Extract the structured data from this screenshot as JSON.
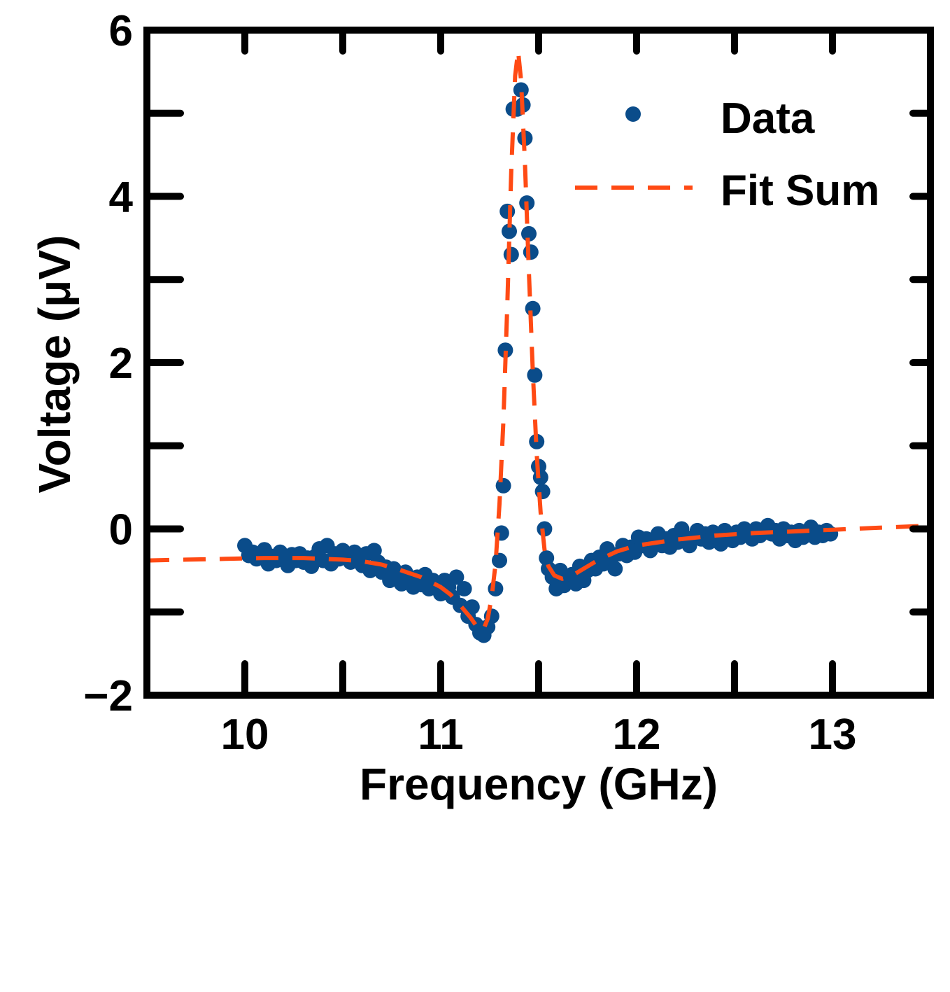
{
  "chart_data": {
    "type": "scatter",
    "xlabel": "Frequency (GHz)",
    "ylabel": "Voltage (μV)",
    "xlim": [
      9.5,
      13.5
    ],
    "ylim": [
      -2,
      6
    ],
    "xticks": [
      10,
      11,
      12,
      13
    ],
    "xtick_labels": [
      "10",
      "11",
      "12",
      "13"
    ],
    "xticks_minor": [
      10.5,
      11.5,
      12.5
    ],
    "yticks": [
      -2,
      0,
      2,
      4,
      6
    ],
    "ytick_labels": [
      "−2",
      "0",
      "2",
      "4",
      "6"
    ],
    "yticks_minor": [
      -1,
      1,
      3,
      5
    ],
    "grid": false,
    "legend_position": "top-right",
    "colors": {
      "data": "#0a4c8a",
      "fit": "#ff4a14",
      "axes": "#000000"
    },
    "series": [
      {
        "name": "Data",
        "type": "scatter",
        "points": [
          [
            10.0,
            -0.2
          ],
          [
            10.02,
            -0.32
          ],
          [
            10.04,
            -0.28
          ],
          [
            10.06,
            -0.36
          ],
          [
            10.08,
            -0.3
          ],
          [
            10.1,
            -0.25
          ],
          [
            10.12,
            -0.42
          ],
          [
            10.14,
            -0.33
          ],
          [
            10.16,
            -0.38
          ],
          [
            10.18,
            -0.28
          ],
          [
            10.2,
            -0.36
          ],
          [
            10.22,
            -0.44
          ],
          [
            10.24,
            -0.31
          ],
          [
            10.26,
            -0.38
          ],
          [
            10.28,
            -0.3
          ],
          [
            10.3,
            -0.4
          ],
          [
            10.32,
            -0.35
          ],
          [
            10.34,
            -0.45
          ],
          [
            10.36,
            -0.33
          ],
          [
            10.38,
            -0.24
          ],
          [
            10.4,
            -0.38
          ],
          [
            10.42,
            -0.2
          ],
          [
            10.44,
            -0.42
          ],
          [
            10.46,
            -0.3
          ],
          [
            10.48,
            -0.36
          ],
          [
            10.5,
            -0.26
          ],
          [
            10.52,
            -0.33
          ],
          [
            10.54,
            -0.4
          ],
          [
            10.56,
            -0.28
          ],
          [
            10.58,
            -0.36
          ],
          [
            10.6,
            -0.44
          ],
          [
            10.62,
            -0.3
          ],
          [
            10.64,
            -0.5
          ],
          [
            10.66,
            -0.26
          ],
          [
            10.68,
            -0.4
          ],
          [
            10.7,
            -0.52
          ],
          [
            10.72,
            -0.46
          ],
          [
            10.74,
            -0.62
          ],
          [
            10.76,
            -0.48
          ],
          [
            10.78,
            -0.55
          ],
          [
            10.8,
            -0.66
          ],
          [
            10.82,
            -0.52
          ],
          [
            10.84,
            -0.6
          ],
          [
            10.86,
            -0.7
          ],
          [
            10.88,
            -0.58
          ],
          [
            10.9,
            -0.67
          ],
          [
            10.92,
            -0.55
          ],
          [
            10.94,
            -0.72
          ],
          [
            10.96,
            -0.62
          ],
          [
            10.98,
            -0.7
          ],
          [
            11.0,
            -0.78
          ],
          [
            11.02,
            -0.62
          ],
          [
            11.04,
            -0.7
          ],
          [
            11.06,
            -0.82
          ],
          [
            11.08,
            -0.58
          ],
          [
            11.1,
            -0.92
          ],
          [
            11.12,
            -0.72
          ],
          [
            11.14,
            -1.05
          ],
          [
            11.16,
            -0.94
          ],
          [
            11.18,
            -1.15
          ],
          [
            11.2,
            -1.25
          ],
          [
            11.22,
            -1.28
          ],
          [
            11.24,
            -1.18
          ],
          [
            11.26,
            -1.05
          ],
          [
            11.28,
            -0.72
          ],
          [
            11.3,
            -0.38
          ],
          [
            11.31,
            -0.05
          ],
          [
            11.32,
            0.52
          ],
          [
            11.33,
            2.15
          ],
          [
            11.34,
            3.82
          ],
          [
            11.35,
            3.58
          ],
          [
            11.36,
            3.3
          ],
          [
            11.37,
            5.05
          ],
          [
            11.39,
            5.05
          ],
          [
            11.41,
            5.28
          ],
          [
            11.42,
            5.1
          ],
          [
            11.43,
            4.7
          ],
          [
            11.44,
            3.92
          ],
          [
            11.45,
            3.55
          ],
          [
            11.46,
            3.33
          ],
          [
            11.47,
            2.65
          ],
          [
            11.48,
            1.85
          ],
          [
            11.49,
            1.05
          ],
          [
            11.5,
            0.75
          ],
          [
            11.51,
            0.62
          ],
          [
            11.52,
            0.45
          ],
          [
            11.53,
            0.0
          ],
          [
            11.54,
            -0.35
          ],
          [
            11.55,
            -0.48
          ],
          [
            11.57,
            -0.58
          ],
          [
            11.59,
            -0.72
          ],
          [
            11.61,
            -0.5
          ],
          [
            11.63,
            -0.68
          ],
          [
            11.65,
            -0.6
          ],
          [
            11.67,
            -0.55
          ],
          [
            11.69,
            -0.66
          ],
          [
            11.71,
            -0.45
          ],
          [
            11.73,
            -0.62
          ],
          [
            11.75,
            -0.5
          ],
          [
            11.77,
            -0.38
          ],
          [
            11.79,
            -0.48
          ],
          [
            11.81,
            -0.34
          ],
          [
            11.83,
            -0.42
          ],
          [
            11.85,
            -0.24
          ],
          [
            11.87,
            -0.36
          ],
          [
            11.89,
            -0.48
          ],
          [
            11.91,
            -0.3
          ],
          [
            11.93,
            -0.2
          ],
          [
            11.95,
            -0.32
          ],
          [
            11.97,
            -0.22
          ],
          [
            11.99,
            -0.28
          ],
          [
            12.01,
            -0.1
          ],
          [
            12.03,
            -0.2
          ],
          [
            12.05,
            -0.12
          ],
          [
            12.07,
            -0.26
          ],
          [
            12.09,
            -0.16
          ],
          [
            12.11,
            -0.06
          ],
          [
            12.13,
            -0.2
          ],
          [
            12.15,
            -0.12
          ],
          [
            12.17,
            -0.22
          ],
          [
            12.19,
            -0.08
          ],
          [
            12.21,
            -0.16
          ],
          [
            12.23,
            0.0
          ],
          [
            12.25,
            -0.14
          ],
          [
            12.27,
            -0.2
          ],
          [
            12.29,
            -0.1
          ],
          [
            12.31,
            -0.02
          ],
          [
            12.33,
            -0.12
          ],
          [
            12.35,
            -0.06
          ],
          [
            12.37,
            -0.16
          ],
          [
            12.39,
            -0.04
          ],
          [
            12.41,
            -0.1
          ],
          [
            12.43,
            -0.18
          ],
          [
            12.45,
            -0.02
          ],
          [
            12.47,
            -0.08
          ],
          [
            12.49,
            -0.14
          ],
          [
            12.51,
            -0.04
          ],
          [
            12.53,
            -0.1
          ],
          [
            12.55,
            0.0
          ],
          [
            12.57,
            -0.06
          ],
          [
            12.59,
            -0.12
          ],
          [
            12.61,
            0.0
          ],
          [
            12.63,
            -0.08
          ],
          [
            12.65,
            -0.04
          ],
          [
            12.67,
            0.04
          ],
          [
            12.69,
            -0.06
          ],
          [
            12.71,
            -0.02
          ],
          [
            12.73,
            -0.12
          ],
          [
            12.75,
            0.0
          ],
          [
            12.77,
            -0.08
          ],
          [
            12.79,
            -0.04
          ],
          [
            12.81,
            -0.14
          ],
          [
            12.83,
            -0.02
          ],
          [
            12.85,
            -0.1
          ],
          [
            12.87,
            -0.06
          ],
          [
            12.89,
            0.02
          ],
          [
            12.91,
            -0.1
          ],
          [
            12.93,
            -0.04
          ],
          [
            12.95,
            -0.08
          ],
          [
            12.97,
            -0.02
          ],
          [
            12.99,
            -0.06
          ]
        ]
      },
      {
        "name": "Fit Sum",
        "type": "line",
        "style": "dashed",
        "points": [
          [
            9.5,
            -0.38
          ],
          [
            9.7,
            -0.37
          ],
          [
            9.9,
            -0.36
          ],
          [
            10.1,
            -0.35
          ],
          [
            10.3,
            -0.35
          ],
          [
            10.5,
            -0.37
          ],
          [
            10.6,
            -0.39
          ],
          [
            10.7,
            -0.43
          ],
          [
            10.8,
            -0.5
          ],
          [
            10.9,
            -0.58
          ],
          [
            11.0,
            -0.7
          ],
          [
            11.05,
            -0.79
          ],
          [
            11.1,
            -0.92
          ],
          [
            11.15,
            -1.06
          ],
          [
            11.18,
            -1.16
          ],
          [
            11.2,
            -1.22
          ],
          [
            11.22,
            -1.2
          ],
          [
            11.24,
            -1.08
          ],
          [
            11.26,
            -0.82
          ],
          [
            11.28,
            -0.42
          ],
          [
            11.3,
            0.3
          ],
          [
            11.32,
            1.3
          ],
          [
            11.34,
            2.7
          ],
          [
            11.36,
            4.3
          ],
          [
            11.38,
            5.45
          ],
          [
            11.395,
            5.75
          ],
          [
            11.41,
            5.4
          ],
          [
            11.43,
            4.4
          ],
          [
            11.45,
            3.1
          ],
          [
            11.47,
            1.9
          ],
          [
            11.49,
            0.9
          ],
          [
            11.51,
            0.2
          ],
          [
            11.53,
            -0.25
          ],
          [
            11.55,
            -0.45
          ],
          [
            11.58,
            -0.56
          ],
          [
            11.62,
            -0.6
          ],
          [
            11.66,
            -0.58
          ],
          [
            11.7,
            -0.52
          ],
          [
            11.8,
            -0.38
          ],
          [
            11.9,
            -0.27
          ],
          [
            12.0,
            -0.2
          ],
          [
            12.2,
            -0.13
          ],
          [
            12.4,
            -0.08
          ],
          [
            12.6,
            -0.05
          ],
          [
            12.8,
            -0.03
          ],
          [
            13.0,
            -0.01
          ],
          [
            13.2,
            0.01
          ],
          [
            13.5,
            0.04
          ]
        ]
      }
    ]
  }
}
